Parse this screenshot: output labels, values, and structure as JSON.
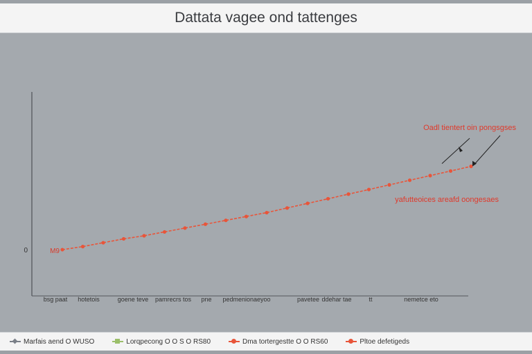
{
  "title": "Dattata vagee ond tattenges",
  "chart_data": {
    "type": "line",
    "title": "Dattata vagee ond tattenges",
    "xlabel": "",
    "ylabel": "",
    "y_tick_label": "0",
    "x_tick_labels": [
      "bsg paat",
      "hotetois",
      "goene teve",
      "pamrecrs tos",
      "pne",
      "pedmenionaeyoo",
      "pavetee",
      "ddehar tae",
      "tt",
      "nemetce eto"
    ],
    "x": [
      0,
      1,
      2,
      3,
      4,
      5,
      6,
      7,
      8,
      9,
      10,
      11,
      12,
      13,
      14,
      15,
      16,
      17,
      18,
      19,
      20
    ],
    "series": [
      {
        "values": [
          0.0,
          0.4,
          0.9,
          1.4,
          1.8,
          2.3,
          2.8,
          3.3,
          3.8,
          4.3,
          4.8,
          5.4,
          6.0,
          6.6,
          7.2,
          7.8,
          8.4,
          9.0,
          9.6,
          10.2,
          10.8
        ],
        "color": "#e8553a",
        "marker": "circle"
      }
    ],
    "start_label": "M9",
    "annotations": [
      {
        "text": "Oadl tientert oin pongsgses",
        "color": "#e0392b"
      },
      {
        "text": "yafutteoices areafd oongesaes",
        "color": "#e0392b"
      }
    ],
    "ylim": [
      -6,
      20
    ],
    "grid": false,
    "legend_position": "bottom"
  },
  "legend": [
    {
      "label": "Marfais aend O WUSO",
      "color": "#7a8088",
      "marker": "diamond"
    },
    {
      "label": "Lorqpecong O O S O RS80",
      "color": "#9bbf6a",
      "marker": "square"
    },
    {
      "label": "Dma tortergestte O O RS60",
      "color": "#e8553a",
      "marker": "circle"
    },
    {
      "label": "Pltoe defetigeds",
      "color": "#e8553a",
      "marker": "circle"
    }
  ]
}
